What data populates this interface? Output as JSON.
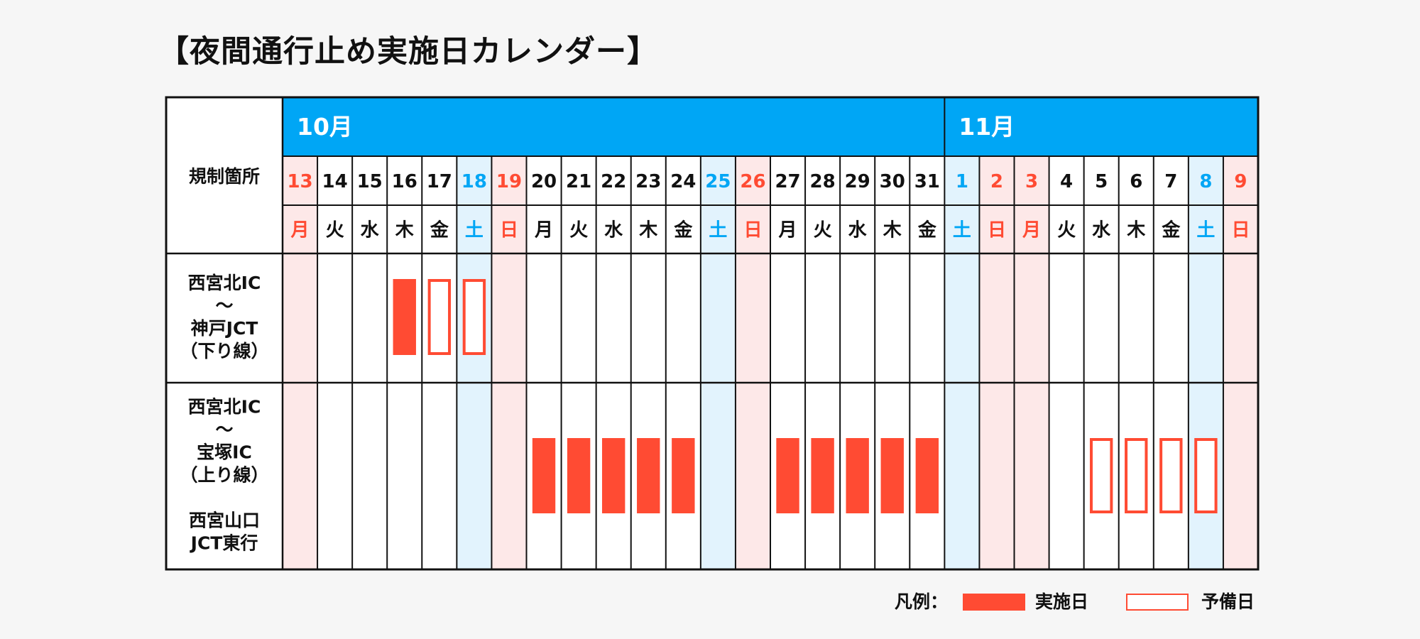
{
  "title": "【夜間通行止め実施日カレンダー】",
  "header_label": "規制箇所",
  "months": [
    {
      "label": "10月",
      "start_index": 0,
      "count": 19
    },
    {
      "label": "11月",
      "start_index": 19,
      "count": 9
    }
  ],
  "days": [
    {
      "day": "13",
      "weekday": "月",
      "kind": "holiday"
    },
    {
      "day": "14",
      "weekday": "火",
      "kind": "weekday"
    },
    {
      "day": "15",
      "weekday": "水",
      "kind": "weekday"
    },
    {
      "day": "16",
      "weekday": "木",
      "kind": "weekday"
    },
    {
      "day": "17",
      "weekday": "金",
      "kind": "weekday"
    },
    {
      "day": "18",
      "weekday": "土",
      "kind": "saturday"
    },
    {
      "day": "19",
      "weekday": "日",
      "kind": "holiday"
    },
    {
      "day": "20",
      "weekday": "月",
      "kind": "weekday"
    },
    {
      "day": "21",
      "weekday": "火",
      "kind": "weekday"
    },
    {
      "day": "22",
      "weekday": "水",
      "kind": "weekday"
    },
    {
      "day": "23",
      "weekday": "木",
      "kind": "weekday"
    },
    {
      "day": "24",
      "weekday": "金",
      "kind": "weekday"
    },
    {
      "day": "25",
      "weekday": "土",
      "kind": "saturday"
    },
    {
      "day": "26",
      "weekday": "日",
      "kind": "holiday"
    },
    {
      "day": "27",
      "weekday": "月",
      "kind": "weekday"
    },
    {
      "day": "28",
      "weekday": "火",
      "kind": "weekday"
    },
    {
      "day": "29",
      "weekday": "水",
      "kind": "weekday"
    },
    {
      "day": "30",
      "weekday": "木",
      "kind": "weekday"
    },
    {
      "day": "31",
      "weekday": "金",
      "kind": "weekday"
    },
    {
      "day": "1",
      "weekday": "土",
      "kind": "saturday"
    },
    {
      "day": "2",
      "weekday": "日",
      "kind": "holiday"
    },
    {
      "day": "3",
      "weekday": "月",
      "kind": "holiday"
    },
    {
      "day": "4",
      "weekday": "火",
      "kind": "weekday"
    },
    {
      "day": "5",
      "weekday": "水",
      "kind": "weekday"
    },
    {
      "day": "6",
      "weekday": "木",
      "kind": "weekday"
    },
    {
      "day": "7",
      "weekday": "金",
      "kind": "weekday"
    },
    {
      "day": "8",
      "weekday": "土",
      "kind": "saturday"
    },
    {
      "day": "9",
      "weekday": "日",
      "kind": "holiday"
    }
  ],
  "rows": [
    {
      "label_lines": [
        "西宮北IC",
        "～",
        "神戸JCT",
        "（下り線）"
      ],
      "closures": [
        3
      ],
      "reserve": [
        4,
        5
      ]
    },
    {
      "label_lines": [
        "西宮北IC",
        "～",
        "宝塚IC",
        "（上り線）",
        "",
        "西宮山口",
        "JCT東行"
      ],
      "closures": [
        7,
        8,
        9,
        10,
        11,
        14,
        15,
        16,
        17,
        18
      ],
      "reserve": [
        23,
        24,
        25,
        26
      ]
    }
  ],
  "legend": {
    "label": "凡例：",
    "closure_label": "実施日",
    "reserve_label": "予備日"
  },
  "colors": {
    "month_band": "#00a6f5",
    "closure": "#ff4b33",
    "holiday_text": "#ff4b33",
    "saturday_text": "#00a6f5",
    "holiday_bg": "#fde8e8",
    "saturday_bg": "#e2f3fd",
    "grid": "#111111"
  }
}
